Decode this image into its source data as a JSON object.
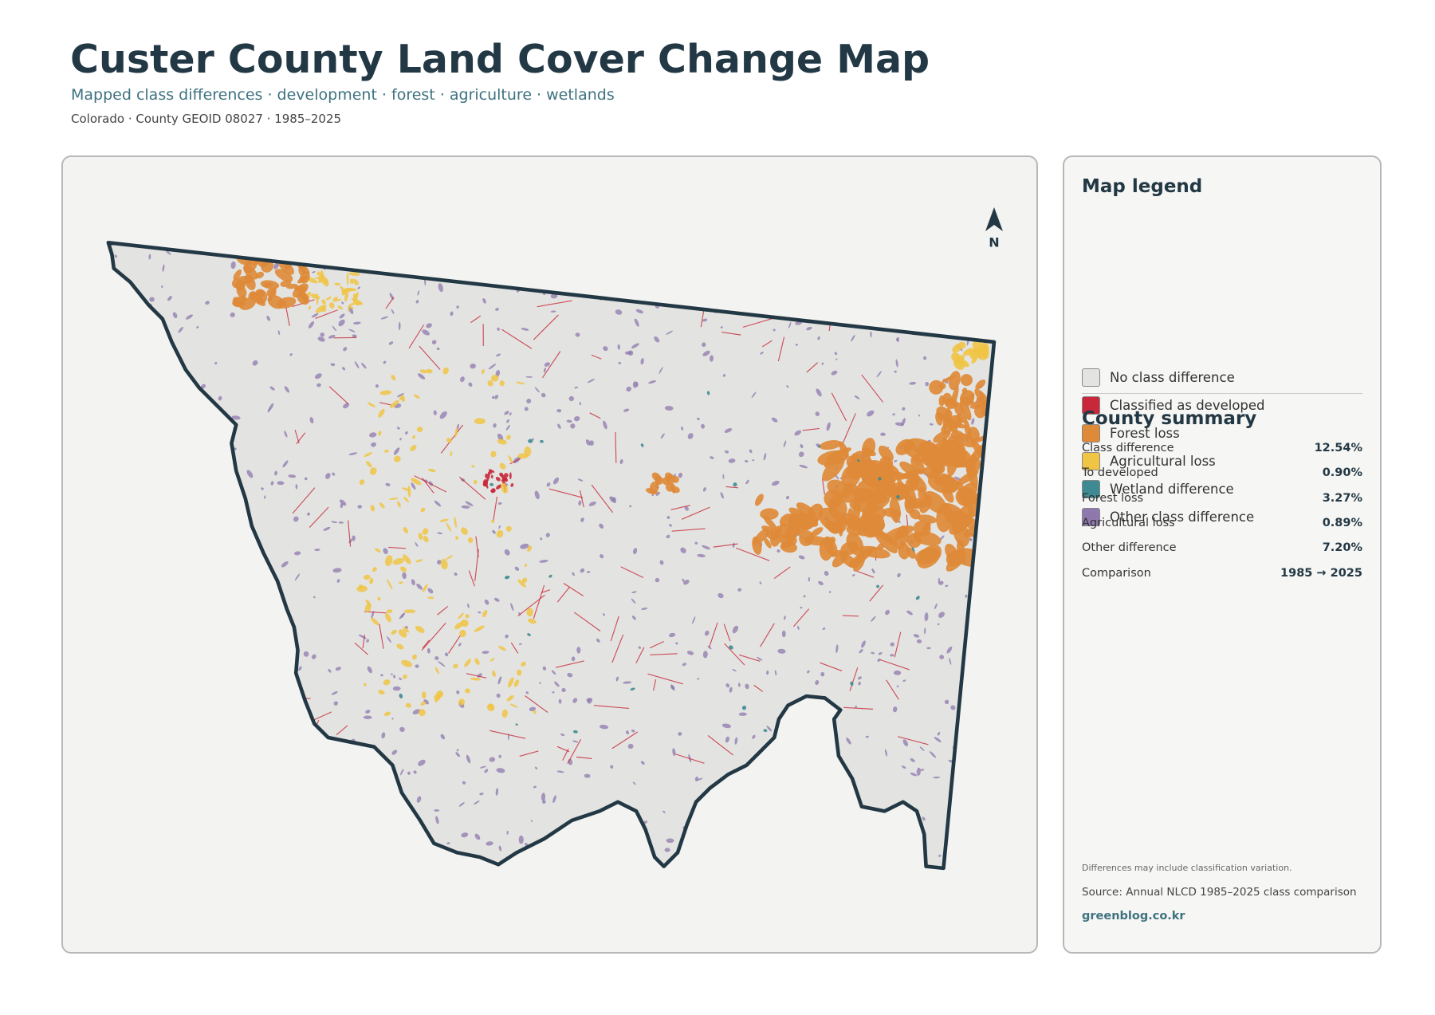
{
  "header": {
    "title": "Custer County Land Cover Change Map",
    "subtitle": "Mapped class differences · development · forest · agriculture · wetlands",
    "meta": "Colorado · County GEOID 08027 · 1985–2025"
  },
  "map": {
    "north_label": "N"
  },
  "legend": {
    "title": "Map legend",
    "items": [
      {
        "label": "No class difference",
        "color": "#e3e4e1"
      },
      {
        "label": "Classified as developed",
        "color": "#c8283a"
      },
      {
        "label": "Forest loss",
        "color": "#de8a38"
      },
      {
        "label": "Agricultural loss",
        "color": "#f0c445"
      },
      {
        "label": "Wetland difference",
        "color": "#3e8a92"
      },
      {
        "label": "Other class difference",
        "color": "#8f78ae"
      }
    ]
  },
  "summary": {
    "title": "County summary",
    "rows": [
      {
        "label": "Class difference",
        "value": "12.54%"
      },
      {
        "label": "To developed",
        "value": "0.90%"
      },
      {
        "label": "Forest loss",
        "value": "3.27%"
      },
      {
        "label": "Agricultural loss",
        "value": "0.89%"
      },
      {
        "label": "Other difference",
        "value": "7.20%"
      },
      {
        "label": "Comparison",
        "value": "1985 → 2025"
      }
    ]
  },
  "footer": {
    "note": "Differences may include classification variation.",
    "source": "Source: Annual NLCD 1985–2025 class comparison",
    "site": "greenblog.co.kr"
  }
}
